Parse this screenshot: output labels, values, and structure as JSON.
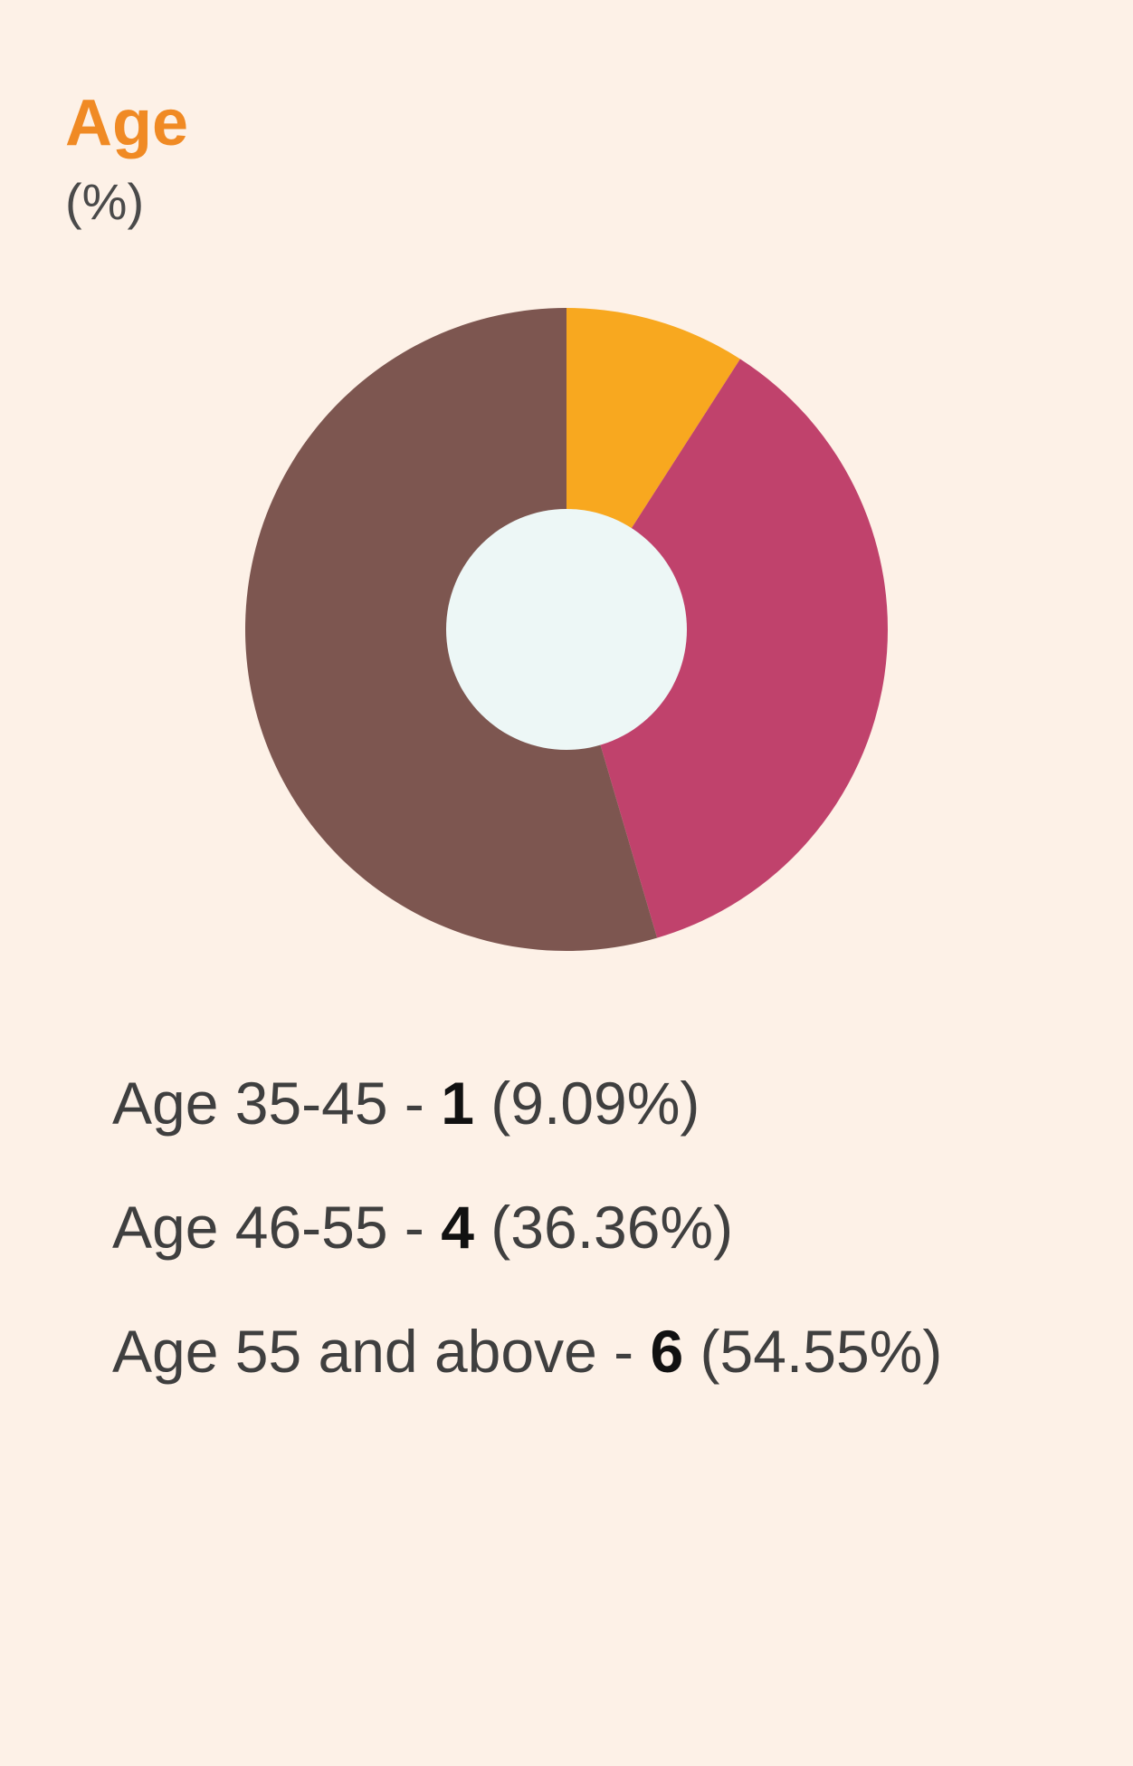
{
  "chart_data": {
    "type": "pie",
    "style": "donut",
    "title": "Age",
    "subtitle": "(%)",
    "slices": [
      {
        "label": "Age 35-45",
        "count": "1",
        "percent_text": "(9.09%)",
        "value": 9.09,
        "color": "#f8a81f"
      },
      {
        "label": "Age 46-55",
        "count": "4",
        "percent_text": "(36.36%)",
        "value": 36.36,
        "color": "#c0426c"
      },
      {
        "label": "Age 55 and above",
        "count": "6",
        "percent_text": "(54.55%)",
        "value": 54.55,
        "color": "#7d5650"
      }
    ],
    "center_color": "#edf7f6",
    "legend_placement": "bottom"
  }
}
